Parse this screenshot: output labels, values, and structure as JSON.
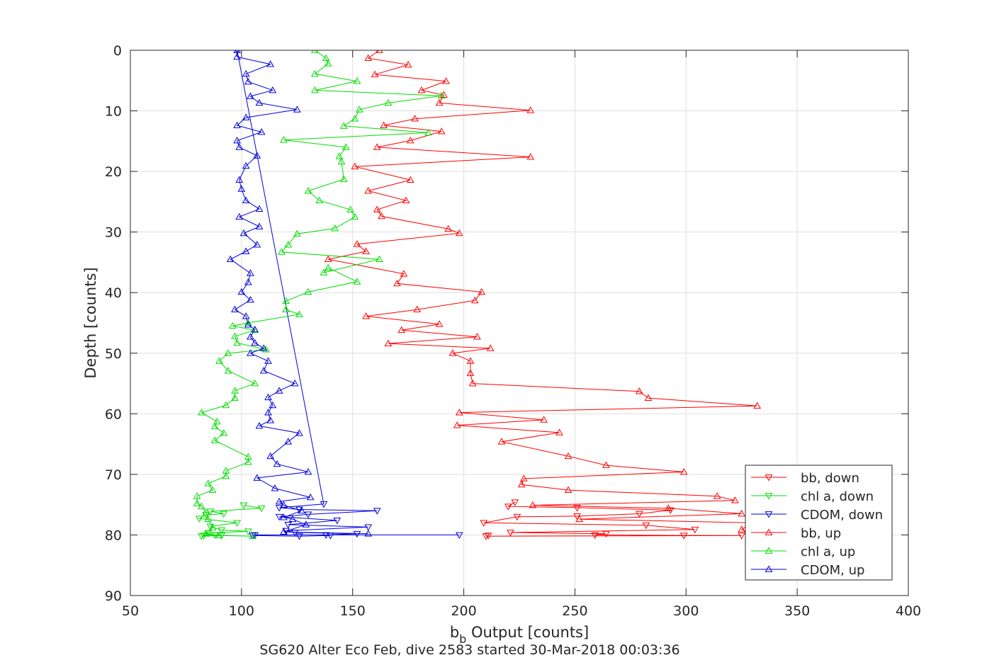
{
  "chart_data": {
    "type": "line",
    "title": "",
    "xlabel_main": "b",
    "xlabel_sub": "b",
    "xlabel_rest": " Output [counts]",
    "ylabel": "Depth [counts]",
    "caption": "SG620 Alter Eco Feb, dive 2583 started 30-Mar-2018 00:03:36",
    "xlim": [
      50,
      400
    ],
    "ylim": [
      0,
      90
    ],
    "y_reversed": true,
    "grid": true,
    "legend_position": "lower-right",
    "xticks": [
      "50",
      "100",
      "150",
      "200",
      "250",
      "300",
      "350",
      "400"
    ],
    "yticks": [
      "0",
      "10",
      "20",
      "30",
      "40",
      "50",
      "60",
      "70",
      "80",
      "90"
    ],
    "series": [
      {
        "name": "bb, down",
        "color": "#ff0000",
        "marker": "triangle-down",
        "points": [
          [
            223,
            74.6
          ],
          [
            220,
            75.3
          ],
          [
            251,
            75.5
          ],
          [
            293,
            75.9
          ],
          [
            279,
            76.5
          ],
          [
            251,
            76.9
          ],
          [
            224,
            77.0
          ],
          [
            209,
            78.0
          ],
          [
            282,
            78.4
          ],
          [
            304,
            79.1
          ],
          [
            221,
            79.6
          ],
          [
            264,
            79.8
          ],
          [
            259,
            80.0
          ],
          [
            299,
            80.1
          ],
          [
            325,
            80.1
          ],
          [
            210,
            80.2
          ],
          [
            211,
            80.1
          ]
        ]
      },
      {
        "name": "chl a, down",
        "color": "#00dd00",
        "marker": "triangle-down",
        "points": [
          [
            101,
            75.1
          ],
          [
            109,
            75.6
          ],
          [
            86,
            76.1
          ],
          [
            92,
            76.5
          ],
          [
            84,
            76.7
          ],
          [
            81,
            77.3
          ],
          [
            98,
            78.0
          ],
          [
            86,
            78.6
          ],
          [
            91,
            79.2
          ],
          [
            103,
            79.4
          ],
          [
            85,
            79.7
          ],
          [
            83,
            80.1
          ],
          [
            88,
            80.0
          ],
          [
            91,
            80.1
          ],
          [
            82,
            80.2
          ]
        ]
      },
      {
        "name": "CDOM, down",
        "color": "#0000dd",
        "marker": "triangle-down",
        "points": [
          [
            98,
            0.0
          ],
          [
            137,
            74.9
          ],
          [
            117,
            75.5
          ],
          [
            126,
            75.8
          ],
          [
            161,
            76.0
          ],
          [
            130,
            76.6
          ],
          [
            117,
            77.0
          ],
          [
            143,
            77.6
          ],
          [
            121,
            78.3
          ],
          [
            157,
            78.7
          ],
          [
            120,
            79.3
          ],
          [
            124,
            79.6
          ],
          [
            152,
            79.8
          ],
          [
            138,
            80.0
          ],
          [
            140,
            80.1
          ],
          [
            126,
            80.2
          ],
          [
            105,
            80.1
          ],
          [
            106,
            80.0
          ],
          [
            198,
            80.0
          ]
        ]
      },
      {
        "name": "bb, up",
        "color": "#ff0000",
        "marker": "triangle-up",
        "points": [
          [
            162,
            0
          ],
          [
            157,
            1.3
          ],
          [
            175,
            2.4
          ],
          [
            160,
            4.0
          ],
          [
            192,
            5.1
          ],
          [
            181,
            6.6
          ],
          [
            191,
            7.4
          ],
          [
            189,
            8.7
          ],
          [
            230,
            9.9
          ],
          [
            178,
            11.3
          ],
          [
            164,
            12.4
          ],
          [
            190,
            13.4
          ],
          [
            176,
            14.9
          ],
          [
            161,
            16.0
          ],
          [
            230,
            17.6
          ],
          [
            151,
            19.2
          ],
          [
            176,
            21.4
          ],
          [
            157,
            23.2
          ],
          [
            174,
            24.8
          ],
          [
            161,
            26.3
          ],
          [
            163,
            27.4
          ],
          [
            193,
            29.5
          ],
          [
            198,
            30.2
          ],
          [
            152,
            32.0
          ],
          [
            156,
            33.2
          ],
          [
            139,
            34.5
          ],
          [
            173,
            36.9
          ],
          [
            170,
            38.5
          ],
          [
            208,
            39.9
          ],
          [
            205,
            41.3
          ],
          [
            179,
            42.8
          ],
          [
            156,
            43.9
          ],
          [
            189,
            45.2
          ],
          [
            172,
            46.2
          ],
          [
            206,
            47.3
          ],
          [
            166,
            48.4
          ],
          [
            212,
            49.2
          ],
          [
            195,
            50.0
          ],
          [
            203,
            51.3
          ],
          [
            203,
            53.3
          ],
          [
            204,
            55.0
          ],
          [
            279,
            56.3
          ],
          [
            283,
            57.4
          ],
          [
            332,
            58.7
          ],
          [
            198,
            59.8
          ],
          [
            236,
            61.0
          ],
          [
            197,
            61.9
          ],
          [
            243,
            63.1
          ],
          [
            217,
            64.6
          ],
          [
            247,
            67.0
          ],
          [
            264,
            68.5
          ],
          [
            299,
            69.6
          ],
          [
            227,
            70.7
          ],
          [
            226,
            71.7
          ],
          [
            247,
            72.6
          ],
          [
            314,
            73.6
          ],
          [
            322,
            74.3
          ],
          [
            231,
            75.1
          ],
          [
            292,
            75.6
          ],
          [
            325,
            76.5
          ],
          [
            252,
            77.4
          ],
          [
            330,
            78.0
          ],
          [
            325,
            79.1
          ],
          [
            330,
            79.9
          ],
          [
            330,
            80.1
          ]
        ]
      },
      {
        "name": "chl a, up",
        "color": "#00dd00",
        "marker": "triangle-up",
        "points": [
          [
            133,
            0
          ],
          [
            138,
            1.3
          ],
          [
            139,
            2.2
          ],
          [
            133,
            3.9
          ],
          [
            152,
            5.1
          ],
          [
            133,
            6.6
          ],
          [
            190,
            7.5
          ],
          [
            166,
            8.7
          ],
          [
            153,
            9.8
          ],
          [
            151,
            11.3
          ],
          [
            146,
            12.5
          ],
          [
            184,
            13.6
          ],
          [
            119,
            14.8
          ],
          [
            147,
            16.0
          ],
          [
            144,
            17.5
          ],
          [
            145,
            18.4
          ],
          [
            146,
            21.3
          ],
          [
            130,
            23.2
          ],
          [
            135,
            24.8
          ],
          [
            149,
            26.3
          ],
          [
            151,
            27.5
          ],
          [
            142,
            29.4
          ],
          [
            125,
            30.3
          ],
          [
            121,
            32.1
          ],
          [
            118,
            33.3
          ],
          [
            162,
            34.5
          ],
          [
            137,
            36.7
          ],
          [
            139,
            35.9
          ],
          [
            152,
            38.2
          ],
          [
            130,
            39.9
          ],
          [
            120,
            41.4
          ],
          [
            120,
            42.8
          ],
          [
            126,
            43.6
          ],
          [
            103,
            45.0
          ],
          [
            96,
            45.5
          ],
          [
            106,
            46.2
          ],
          [
            97,
            47.2
          ],
          [
            98,
            48.3
          ],
          [
            111,
            49.4
          ],
          [
            94,
            50.0
          ],
          [
            90,
            51.3
          ],
          [
            94,
            52.9
          ],
          [
            106,
            55.0
          ],
          [
            97,
            56.2
          ],
          [
            97,
            57.4
          ],
          [
            93,
            58.6
          ],
          [
            82,
            59.8
          ],
          [
            89,
            61.3
          ],
          [
            88,
            62.1
          ],
          [
            92,
            63.2
          ],
          [
            88,
            64.4
          ],
          [
            103,
            67.1
          ],
          [
            103,
            68.0
          ],
          [
            93,
            69.4
          ],
          [
            93,
            70.3
          ],
          [
            85,
            71.5
          ],
          [
            87,
            72.6
          ],
          [
            80,
            73.6
          ],
          [
            80,
            74.8
          ],
          [
            82,
            75.3
          ],
          [
            84,
            76.3
          ],
          [
            85,
            77.4
          ],
          [
            87,
            78.8
          ],
          [
            84,
            79.8
          ],
          [
            90,
            80.1
          ],
          [
            105,
            80.2
          ]
        ]
      },
      {
        "name": "CDOM, up",
        "color": "#0000dd",
        "marker": "triangle-up",
        "points": [
          [
            98,
            0
          ],
          [
            98,
            1.1
          ],
          [
            113,
            2.3
          ],
          [
            102,
            3.9
          ],
          [
            103,
            5.2
          ],
          [
            114,
            6.6
          ],
          [
            104,
            7.6
          ],
          [
            108,
            8.7
          ],
          [
            125,
            9.8
          ],
          [
            102,
            11.1
          ],
          [
            98,
            12.4
          ],
          [
            109,
            13.5
          ],
          [
            98,
            14.9
          ],
          [
            99,
            16.0
          ],
          [
            107,
            17.4
          ],
          [
            102,
            19.1
          ],
          [
            99,
            21.4
          ],
          [
            100,
            22.9
          ],
          [
            102,
            24.8
          ],
          [
            108,
            26.2
          ],
          [
            99,
            27.5
          ],
          [
            108,
            29.1
          ],
          [
            101,
            30.2
          ],
          [
            107,
            32.1
          ],
          [
            102,
            33.2
          ],
          [
            95,
            34.5
          ],
          [
            104,
            36.8
          ],
          [
            103,
            38.3
          ],
          [
            100,
            39.9
          ],
          [
            104,
            41.2
          ],
          [
            97,
            42.8
          ],
          [
            102,
            43.9
          ],
          [
            103,
            45.3
          ],
          [
            106,
            46.1
          ],
          [
            104,
            47.3
          ],
          [
            106,
            48.3
          ],
          [
            110,
            49.2
          ],
          [
            104,
            50.0
          ],
          [
            112,
            51.3
          ],
          [
            110,
            52.9
          ],
          [
            124,
            55.0
          ],
          [
            117,
            56.2
          ],
          [
            112,
            57.3
          ],
          [
            114,
            58.6
          ],
          [
            112,
            59.8
          ],
          [
            113,
            61.1
          ],
          [
            108,
            62.0
          ],
          [
            126,
            63.2
          ],
          [
            121,
            64.6
          ],
          [
            113,
            67.0
          ],
          [
            116,
            68.3
          ],
          [
            130,
            69.6
          ],
          [
            107,
            70.6
          ],
          [
            115,
            72.3
          ],
          [
            131,
            73.8
          ],
          [
            117,
            74.5
          ],
          [
            119,
            75.1
          ],
          [
            127,
            76.0
          ],
          [
            119,
            77.1
          ],
          [
            123,
            77.4
          ],
          [
            129,
            78.3
          ],
          [
            119,
            79.5
          ],
          [
            157,
            79.8
          ]
        ]
      }
    ]
  }
}
